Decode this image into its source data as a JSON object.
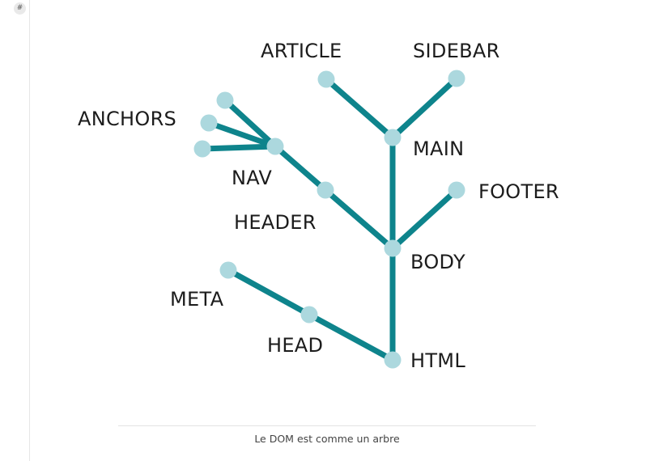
{
  "gutter": {
    "badge": "#"
  },
  "tree": {
    "labels": {
      "article": "ARTICLE",
      "sidebar": "SIDEBAR",
      "anchors": "ANCHORS",
      "main": "MAIN",
      "nav": "NAV",
      "footer": "FOOTER",
      "header": "HEADER",
      "body": "BODY",
      "meta": "META",
      "head": "HEAD",
      "html": "HTML"
    },
    "colors": {
      "edge": "#0e848c",
      "node": "#acd8de",
      "label": "#1c1c1c"
    }
  },
  "caption": "Le DOM est comme un arbre"
}
